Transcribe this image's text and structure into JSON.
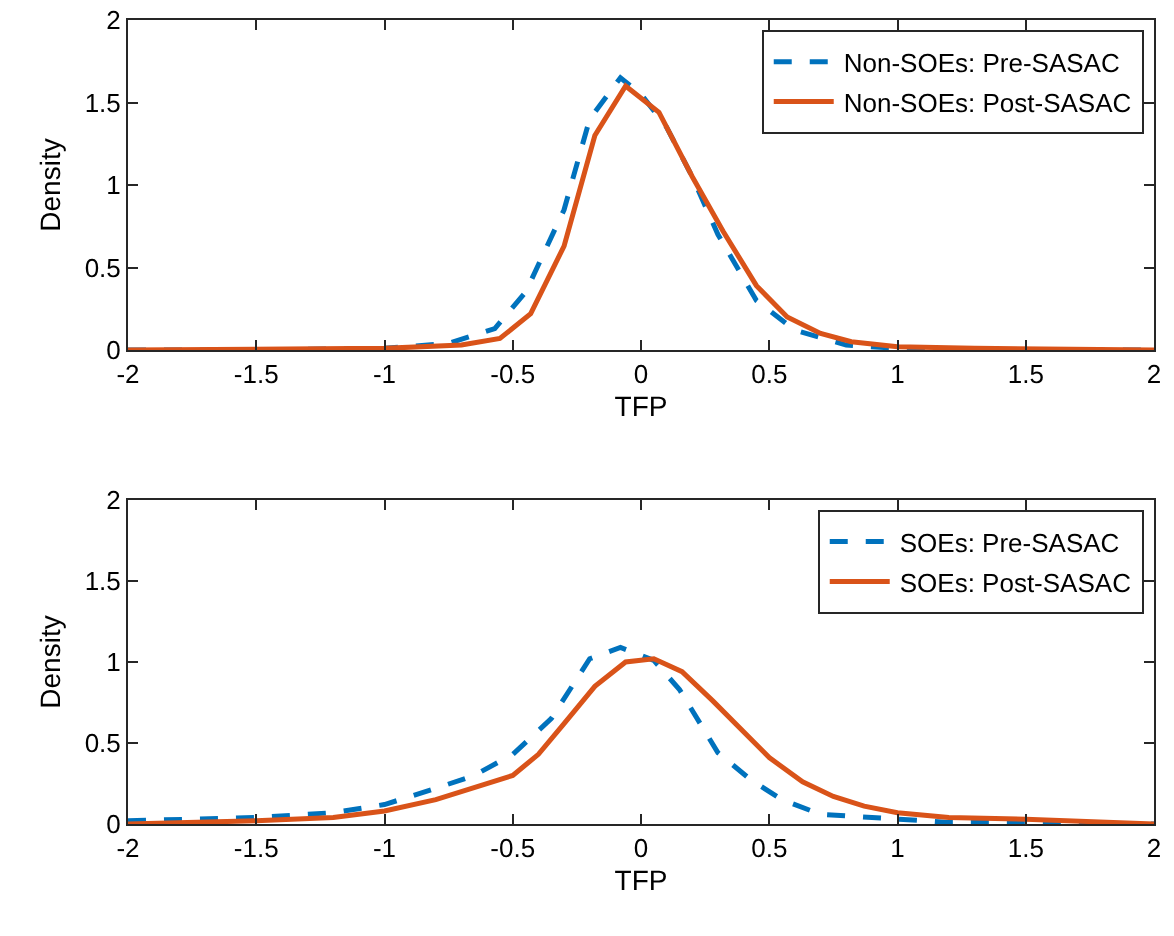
{
  "chart_data": [
    {
      "type": "line",
      "xlabel": "TFP",
      "ylabel": "Density",
      "xlim": [
        -2,
        2
      ],
      "xticks": [
        -2,
        -1.5,
        -1,
        -0.5,
        0,
        0.5,
        1,
        1.5,
        2
      ],
      "ylim": [
        0,
        2
      ],
      "yticks": [
        0,
        0.5,
        1,
        1.5,
        2
      ],
      "grid": false,
      "legend": "top right",
      "marker": "none",
      "series": [
        {
          "name": "Non-SOEs: Pre-SASAC",
          "color": "#0072bd",
          "line_style": "dashed",
          "x": [
            -2,
            -1.5,
            -1,
            -0.75,
            -0.57,
            -0.45,
            -0.3,
            -0.2,
            -0.08,
            0,
            0.1,
            0.2,
            0.3,
            0.45,
            0.6,
            0.8,
            1,
            1.5,
            2
          ],
          "values": [
            0,
            0,
            0.01,
            0.04,
            0.13,
            0.35,
            0.85,
            1.4,
            1.65,
            1.55,
            1.35,
            1.05,
            0.7,
            0.3,
            0.12,
            0.03,
            0.01,
            0,
            0
          ]
        },
        {
          "name": "Non-SOEs: Post-SASAC",
          "color": "#d95319",
          "line_style": "solid",
          "x": [
            -2,
            -1,
            -0.7,
            -0.55,
            -0.43,
            -0.3,
            -0.18,
            -0.06,
            0.07,
            0.2,
            0.32,
            0.45,
            0.57,
            0.7,
            0.82,
            1,
            1.3,
            2
          ],
          "values": [
            0,
            0.01,
            0.03,
            0.07,
            0.22,
            0.63,
            1.3,
            1.6,
            1.44,
            1.05,
            0.72,
            0.39,
            0.2,
            0.1,
            0.05,
            0.02,
            0.01,
            0
          ]
        }
      ]
    },
    {
      "type": "line",
      "xlabel": "TFP",
      "ylabel": "Density",
      "xlim": [
        -2,
        2
      ],
      "xticks": [
        -2,
        -1.5,
        -1,
        -0.5,
        0,
        0.5,
        1,
        1.5,
        2
      ],
      "ylim": [
        0,
        2
      ],
      "yticks": [
        0,
        0.5,
        1,
        1.5,
        2
      ],
      "grid": false,
      "legend": "top right",
      "marker": "none",
      "series": [
        {
          "name": "SOEs: Pre-SASAC",
          "color": "#0072bd",
          "line_style": "dashed",
          "x": [
            -2,
            -1.5,
            -1.2,
            -1,
            -0.8,
            -0.65,
            -0.5,
            -0.35,
            -0.2,
            -0.08,
            0.05,
            0.15,
            0.3,
            0.43,
            0.55,
            0.7,
            1,
            1.2,
            1.5,
            2
          ],
          "values": [
            0.02,
            0.04,
            0.07,
            0.12,
            0.22,
            0.3,
            0.43,
            0.65,
            1.02,
            1.09,
            1.01,
            0.83,
            0.44,
            0.27,
            0.15,
            0.06,
            0.03,
            0.01,
            0.01,
            0
          ]
        },
        {
          "name": "SOEs: Post-SASAC",
          "color": "#d95319",
          "line_style": "solid",
          "x": [
            -2,
            -1.5,
            -1.2,
            -1,
            -0.8,
            -0.5,
            -0.4,
            -0.3,
            -0.18,
            -0.06,
            0.05,
            0.16,
            0.28,
            0.5,
            0.63,
            0.75,
            0.87,
            1,
            1.2,
            1.5,
            2
          ],
          "values": [
            0,
            0.02,
            0.04,
            0.08,
            0.15,
            0.3,
            0.43,
            0.62,
            0.85,
            1,
            1.02,
            0.94,
            0.76,
            0.41,
            0.26,
            0.17,
            0.11,
            0.07,
            0.04,
            0.03,
            0
          ]
        }
      ]
    }
  ]
}
